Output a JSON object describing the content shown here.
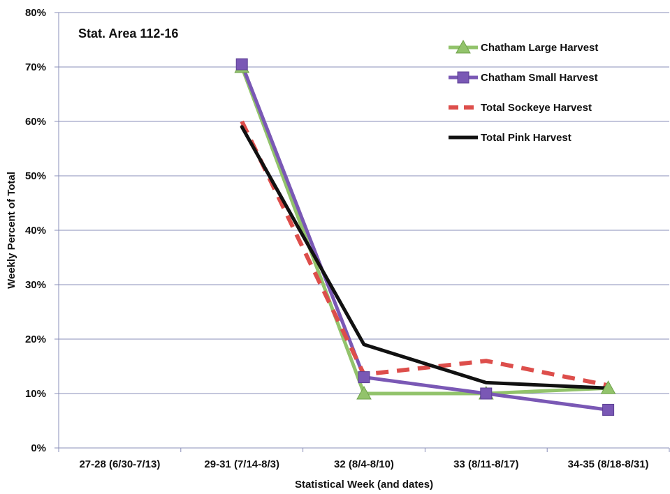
{
  "chart_data": {
    "type": "line",
    "annotation": "Stat. Area 112-16",
    "xlabel": "Statistical Week (and dates)",
    "ylabel": "Weekly Percent of Total",
    "ylim": [
      0,
      0.8
    ],
    "y_ticks": [
      "0%",
      "10%",
      "20%",
      "30%",
      "40%",
      "50%",
      "60%",
      "70%",
      "80%"
    ],
    "grid": true,
    "legend_position": "top-right",
    "categories": [
      "27-28 (6/30-7/13)",
      "29-31 (7/14-8/3)",
      "32 (8/4-8/10)",
      "33 (8/11-8/17)",
      "34-35 (8/18-8/31)"
    ],
    "series": [
      {
        "name": "Chatham Large Harvest",
        "color": "#92c36b",
        "marker": "triangle",
        "dash": false,
        "values": [
          null,
          0.7,
          0.1,
          0.1,
          0.11
        ]
      },
      {
        "name": "Chatham Small Harvest",
        "color": "#7a58b5",
        "marker": "square",
        "dash": false,
        "values": [
          null,
          0.705,
          0.13,
          0.1,
          0.07
        ]
      },
      {
        "name": "Total Sockeye Harvest",
        "color": "#dd4e4b",
        "marker": "none",
        "dash": true,
        "values": [
          null,
          0.6,
          0.135,
          0.16,
          0.115
        ]
      },
      {
        "name": "Total Pink Harvest",
        "color": "#111111",
        "marker": "none",
        "dash": false,
        "values": [
          null,
          0.59,
          0.19,
          0.12,
          0.11
        ]
      }
    ]
  }
}
